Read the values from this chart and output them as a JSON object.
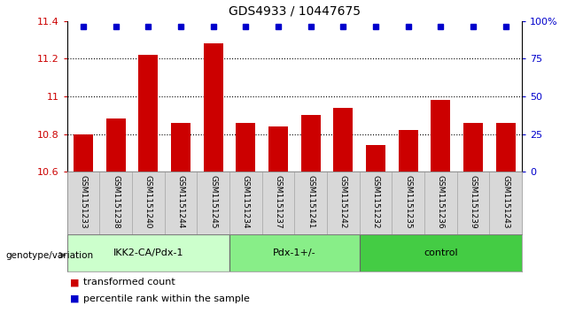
{
  "title": "GDS4933 / 10447675",
  "samples": [
    "GSM1151233",
    "GSM1151238",
    "GSM1151240",
    "GSM1151244",
    "GSM1151245",
    "GSM1151234",
    "GSM1151237",
    "GSM1151241",
    "GSM1151242",
    "GSM1151232",
    "GSM1151235",
    "GSM1151236",
    "GSM1151239",
    "GSM1151243"
  ],
  "red_values": [
    10.8,
    10.88,
    11.22,
    10.86,
    11.28,
    10.86,
    10.84,
    10.9,
    10.94,
    10.74,
    10.82,
    10.98,
    10.86,
    10.86
  ],
  "ylim_left": [
    10.6,
    11.4
  ],
  "ylim_right": [
    0,
    100
  ],
  "yticks_left": [
    10.6,
    10.8,
    11.0,
    11.2,
    11.4
  ],
  "ytick_labels_left": [
    "10.6",
    "10.8",
    "11",
    "11.2",
    "11.4"
  ],
  "yticks_right": [
    0,
    25,
    50,
    75,
    100
  ],
  "ytick_labels_right": [
    "0",
    "25",
    "50",
    "75",
    "100%"
  ],
  "grid_lines": [
    10.8,
    11.0,
    11.2
  ],
  "groups": [
    {
      "label": "IKK2-CA/Pdx-1",
      "start": 0,
      "end": 5,
      "color": "#ccffcc"
    },
    {
      "label": "Pdx-1+/-",
      "start": 5,
      "end": 9,
      "color": "#88ee88"
    },
    {
      "label": "control",
      "start": 9,
      "end": 14,
      "color": "#44cc44"
    }
  ],
  "genotype_label": "genotype/variation",
  "bar_color": "#cc0000",
  "blue_color": "#0000cc",
  "legend_red": "transformed count",
  "legend_blue": "percentile rank within the sample",
  "cell_color": "#d8d8d8",
  "cell_edge_color": "#aaaaaa"
}
